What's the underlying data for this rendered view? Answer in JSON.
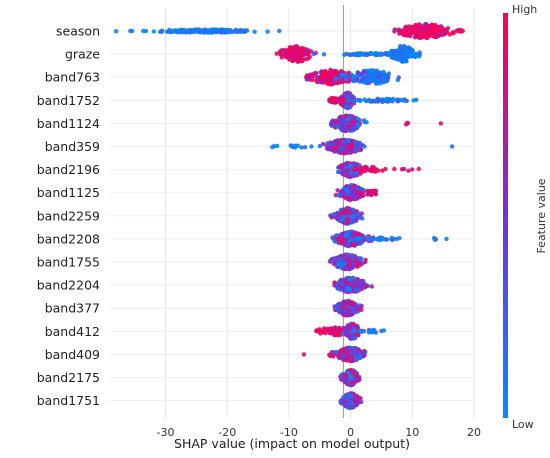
{
  "chart_data": {
    "type": "scatter",
    "subtype": "shap-beeswarm-summary",
    "title": "",
    "xlabel": "SHAP value (impact on model output)",
    "ylabel": "",
    "xlim": [
      -39,
      20
    ],
    "xticks": [
      -30,
      -20,
      -10,
      0,
      10,
      20
    ],
    "grid": true,
    "zero_line": true,
    "colorbar": {
      "label": "Feature value",
      "high_label": "High",
      "low_label": "Low",
      "low_color": "#008bfb",
      "high_color": "#ff0052"
    },
    "features": [
      {
        "name": "season",
        "clusters": [
          {
            "center": -23,
            "spread": 5.5,
            "n": 190,
            "width": 0.07,
            "feat": "low",
            "fjit": 0.05
          },
          {
            "center": 12,
            "spread": 2.6,
            "n": 190,
            "width": 0.32,
            "feat": "high",
            "fjit": 0.12
          },
          {
            "center": -35.5,
            "spread": 0.4,
            "n": 2,
            "width": 0.0,
            "feat": "low",
            "fjit": 0.0
          },
          {
            "center": 17.5,
            "spread": 0.6,
            "n": 6,
            "width": 0.05,
            "feat": "high",
            "fjit": 0.05
          }
        ]
      },
      {
        "name": "graze",
        "clusters": [
          {
            "center": -8.8,
            "spread": 1.5,
            "n": 140,
            "width": 0.36,
            "feat": "high",
            "fjit": 0.1
          },
          {
            "center": 8.5,
            "spread": 1.2,
            "n": 140,
            "width": 0.36,
            "feat": "low",
            "fjit": 0.08
          },
          {
            "center": 3,
            "spread": 5,
            "n": 60,
            "width": 0.05,
            "feat": "low",
            "fjit": 0.1
          },
          {
            "center": -11.5,
            "spread": 0.5,
            "n": 3,
            "width": 0.1,
            "feat": "high",
            "fjit": 0.0
          }
        ]
      },
      {
        "name": "band763",
        "clusters": [
          {
            "center": -3,
            "spread": 2.2,
            "n": 170,
            "width": 0.32,
            "feat": "high",
            "fjit": 0.3
          },
          {
            "center": 3.5,
            "spread": 2.5,
            "n": 170,
            "width": 0.3,
            "feat": "low",
            "fjit": 0.3
          },
          {
            "center": -7,
            "spread": 0.8,
            "n": 6,
            "width": 0.1,
            "feat": "mid",
            "fjit": 0.3
          }
        ]
      },
      {
        "name": "band1752",
        "clusters": [
          {
            "center": -0.5,
            "spread": 0.7,
            "n": 200,
            "width": 0.34,
            "feat": "mid",
            "fjit": 0.4
          },
          {
            "center": -2.5,
            "spread": 0.8,
            "n": 30,
            "width": 0.12,
            "feat": "high",
            "fjit": 0.1
          },
          {
            "center": 5,
            "spread": 3,
            "n": 60,
            "width": 0.07,
            "feat": "low",
            "fjit": 0.15
          }
        ]
      },
      {
        "name": "band1124",
        "clusters": [
          {
            "center": -0.5,
            "spread": 1.5,
            "n": 260,
            "width": 0.34,
            "feat": "mid",
            "fjit": 0.4
          },
          {
            "center": 9,
            "spread": 0.3,
            "n": 3,
            "width": 0.05,
            "feat": "high",
            "fjit": 0.0
          },
          {
            "center": 14.5,
            "spread": 0.1,
            "n": 1,
            "width": 0.0,
            "feat": "high",
            "fjit": 0.0
          }
        ]
      },
      {
        "name": "band359",
        "clusters": [
          {
            "center": -1,
            "spread": 1.8,
            "n": 230,
            "width": 0.3,
            "feat": "mid",
            "fjit": 0.4
          },
          {
            "center": -9,
            "spread": 3,
            "n": 14,
            "width": 0.05,
            "feat": "low",
            "fjit": 0.05
          },
          {
            "center": 16.5,
            "spread": 0.1,
            "n": 1,
            "width": 0.0,
            "feat": "low",
            "fjit": 0.0
          }
        ]
      },
      {
        "name": "band2196",
        "clusters": [
          {
            "center": 0,
            "spread": 1.2,
            "n": 200,
            "width": 0.32,
            "feat": "mid",
            "fjit": 0.4
          },
          {
            "center": 3,
            "spread": 1.5,
            "n": 30,
            "width": 0.12,
            "feat": "high",
            "fjit": 0.15
          },
          {
            "center": 9.5,
            "spread": 1.5,
            "n": 5,
            "width": 0.05,
            "feat": "high",
            "fjit": 0.0
          }
        ]
      },
      {
        "name": "band1125",
        "clusters": [
          {
            "center": 0,
            "spread": 1.3,
            "n": 220,
            "width": 0.33,
            "feat": "mid",
            "fjit": 0.4
          },
          {
            "center": 3.5,
            "spread": 1.0,
            "n": 30,
            "width": 0.1,
            "feat": "high",
            "fjit": 0.1
          }
        ]
      },
      {
        "name": "band2259",
        "clusters": [
          {
            "center": -0.5,
            "spread": 1.2,
            "n": 240,
            "width": 0.34,
            "feat": "mid",
            "fjit": 0.45
          }
        ]
      },
      {
        "name": "band2208",
        "clusters": [
          {
            "center": 0,
            "spread": 1.5,
            "n": 220,
            "width": 0.32,
            "feat": "mid",
            "fjit": 0.4
          },
          {
            "center": 5,
            "spread": 2,
            "n": 30,
            "width": 0.07,
            "feat": "low",
            "fjit": 0.1
          },
          {
            "center": 14,
            "spread": 1.2,
            "n": 4,
            "width": 0.05,
            "feat": "low",
            "fjit": 0.0
          }
        ]
      },
      {
        "name": "band1755",
        "clusters": [
          {
            "center": -0.5,
            "spread": 1.5,
            "n": 230,
            "width": 0.32,
            "feat": "mid",
            "fjit": 0.45
          }
        ]
      },
      {
        "name": "band2204",
        "clusters": [
          {
            "center": 0,
            "spread": 1.5,
            "n": 230,
            "width": 0.32,
            "feat": "mid",
            "fjit": 0.45
          }
        ]
      },
      {
        "name": "band377",
        "clusters": [
          {
            "center": -0.5,
            "spread": 1.1,
            "n": 210,
            "width": 0.32,
            "feat": "mid",
            "fjit": 0.45
          }
        ]
      },
      {
        "name": "band412",
        "clusters": [
          {
            "center": -2.5,
            "spread": 1.8,
            "n": 100,
            "width": 0.18,
            "feat": "high",
            "fjit": 0.1
          },
          {
            "center": 0.3,
            "spread": 0.8,
            "n": 100,
            "width": 0.34,
            "feat": "mid",
            "fjit": 0.4
          },
          {
            "center": 3.5,
            "spread": 1.5,
            "n": 20,
            "width": 0.06,
            "feat": "low",
            "fjit": 0.15
          }
        ]
      },
      {
        "name": "band409",
        "clusters": [
          {
            "center": 0,
            "spread": 1.5,
            "n": 220,
            "width": 0.3,
            "feat": "mid",
            "fjit": 0.45
          },
          {
            "center": -7.5,
            "spread": 0.1,
            "n": 1,
            "width": 0.0,
            "feat": "high",
            "fjit": 0.0
          }
        ]
      },
      {
        "name": "band2175",
        "clusters": [
          {
            "center": 0,
            "spread": 0.8,
            "n": 210,
            "width": 0.34,
            "feat": "mid",
            "fjit": 0.45
          }
        ]
      },
      {
        "name": "band1751",
        "clusters": [
          {
            "center": 0,
            "spread": 0.9,
            "n": 200,
            "width": 0.32,
            "feat": "mid",
            "fjit": 0.45
          }
        ]
      }
    ]
  }
}
